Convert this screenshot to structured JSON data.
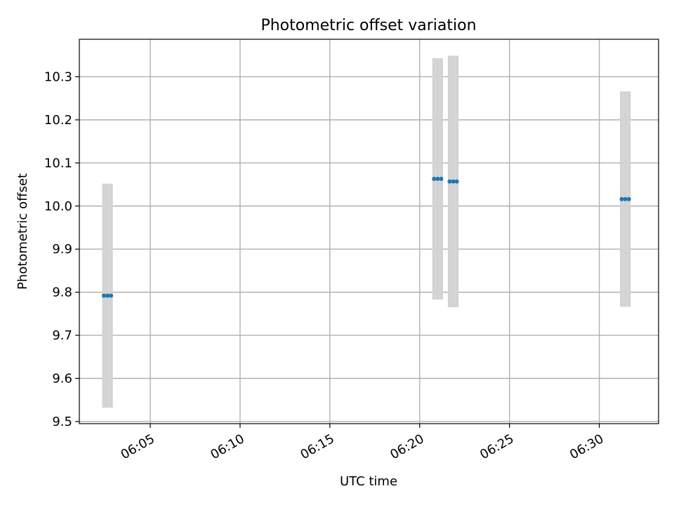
{
  "chart_data": {
    "type": "scatter",
    "title": "Photometric offset variation",
    "xlabel": "UTC time",
    "ylabel": "Photometric offset",
    "xlim": [
      "06:01:03",
      "06:33:18"
    ],
    "ylim": [
      9.495,
      10.387
    ],
    "x_ticks": [
      "06:05",
      "06:10",
      "06:15",
      "06:20",
      "06:25",
      "06:30"
    ],
    "y_ticks": [
      "9.5",
      "9.6",
      "9.7",
      "9.8",
      "9.9",
      "10.0",
      "10.1",
      "10.2",
      "10.3"
    ],
    "grid": true,
    "points": [
      {
        "x": "06:02:25",
        "y": 9.792,
        "yerr": 0.26
      },
      {
        "x": "06:02:37",
        "y": 9.792,
        "yerr": 0.26
      },
      {
        "x": "06:02:49",
        "y": 9.792,
        "yerr": 0.26
      },
      {
        "x": "06:20:48",
        "y": 10.063,
        "yerr": 0.28
      },
      {
        "x": "06:21:00",
        "y": 10.063,
        "yerr": 0.28
      },
      {
        "x": "06:21:12",
        "y": 10.063,
        "yerr": 0.28
      },
      {
        "x": "06:21:40",
        "y": 10.057,
        "yerr": 0.292
      },
      {
        "x": "06:21:52",
        "y": 10.057,
        "yerr": 0.292
      },
      {
        "x": "06:22:04",
        "y": 10.057,
        "yerr": 0.292
      },
      {
        "x": "06:31:15",
        "y": 10.016,
        "yerr": 0.25
      },
      {
        "x": "06:31:27",
        "y": 10.016,
        "yerr": 0.25
      },
      {
        "x": "06:31:39",
        "y": 10.016,
        "yerr": 0.25
      }
    ],
    "colors": {
      "marker": "#1f77b4",
      "errorbar": "#d3d3d3",
      "grid": "#b0b0b0",
      "axes": "#000000"
    }
  }
}
